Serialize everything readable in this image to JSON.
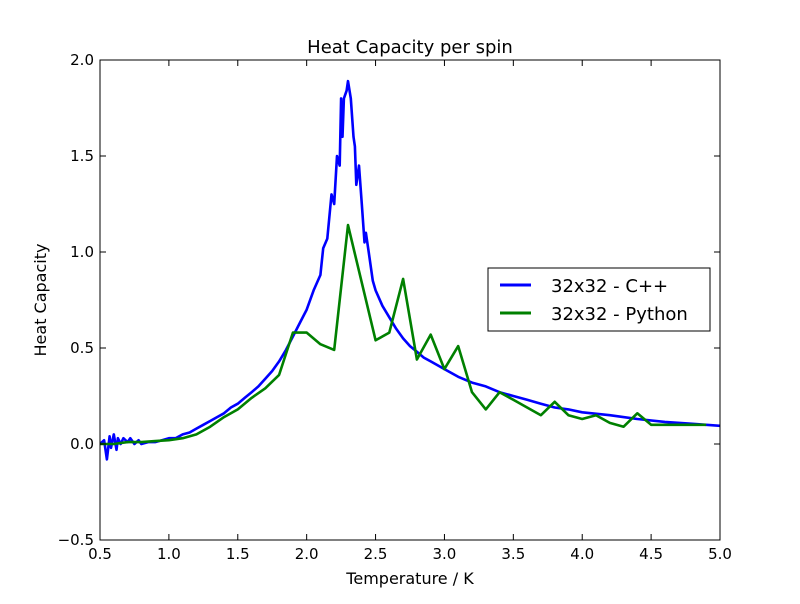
{
  "chart_data": {
    "type": "line",
    "title": "Heat Capacity per spin",
    "xlabel": "Temperature / K",
    "ylabel": "Heat Capacity",
    "xlim": [
      0.5,
      5.0
    ],
    "ylim": [
      -0.5,
      2.0
    ],
    "xticks": [
      "0.5",
      "1.0",
      "1.5",
      "2.0",
      "2.5",
      "3.0",
      "3.5",
      "4.0",
      "4.5",
      "5.0"
    ],
    "yticks": [
      "−0.5",
      "0.0",
      "0.5",
      "1.0",
      "1.5",
      "2.0"
    ],
    "xtick_values": [
      0.5,
      1.0,
      1.5,
      2.0,
      2.5,
      3.0,
      3.5,
      4.0,
      4.5,
      5.0
    ],
    "ytick_values": [
      -0.5,
      0.0,
      0.5,
      1.0,
      1.5,
      2.0
    ],
    "grid": false,
    "legend_position": "center-right",
    "series": [
      {
        "name": "32x32 - C++",
        "color": "#0000ff",
        "x": [
          0.5,
          0.53,
          0.55,
          0.57,
          0.58,
          0.6,
          0.62,
          0.63,
          0.65,
          0.67,
          0.7,
          0.72,
          0.75,
          0.78,
          0.8,
          0.85,
          0.9,
          0.95,
          1.0,
          1.05,
          1.1,
          1.15,
          1.2,
          1.25,
          1.3,
          1.35,
          1.4,
          1.45,
          1.5,
          1.55,
          1.6,
          1.65,
          1.7,
          1.75,
          1.8,
          1.85,
          1.9,
          1.95,
          2.0,
          2.05,
          2.1,
          2.12,
          2.15,
          2.18,
          2.2,
          2.22,
          2.24,
          2.25,
          2.26,
          2.27,
          2.29,
          2.3,
          2.32,
          2.34,
          2.35,
          2.36,
          2.38,
          2.4,
          2.42,
          2.43,
          2.45,
          2.48,
          2.5,
          2.55,
          2.6,
          2.65,
          2.7,
          2.75,
          2.8,
          2.85,
          2.9,
          2.95,
          3.0,
          3.1,
          3.2,
          3.3,
          3.4,
          3.5,
          3.6,
          3.7,
          3.8,
          3.9,
          4.0,
          4.2,
          4.4,
          4.6,
          4.8,
          5.0
        ],
        "y": [
          0.0,
          0.02,
          -0.08,
          0.04,
          -0.02,
          0.05,
          -0.03,
          0.03,
          0.0,
          0.03,
          0.01,
          0.03,
          0.0,
          0.02,
          0.0,
          0.01,
          0.01,
          0.02,
          0.03,
          0.03,
          0.05,
          0.06,
          0.08,
          0.1,
          0.12,
          0.14,
          0.16,
          0.19,
          0.21,
          0.24,
          0.27,
          0.3,
          0.34,
          0.38,
          0.43,
          0.49,
          0.56,
          0.63,
          0.7,
          0.8,
          0.88,
          1.02,
          1.07,
          1.3,
          1.25,
          1.5,
          1.45,
          1.8,
          1.6,
          1.8,
          1.84,
          1.89,
          1.8,
          1.6,
          1.55,
          1.35,
          1.45,
          1.25,
          1.05,
          1.1,
          1.0,
          0.85,
          0.8,
          0.72,
          0.66,
          0.6,
          0.55,
          0.51,
          0.48,
          0.45,
          0.43,
          0.41,
          0.39,
          0.35,
          0.32,
          0.3,
          0.27,
          0.25,
          0.23,
          0.21,
          0.19,
          0.18,
          0.165,
          0.15,
          0.13,
          0.115,
          0.105,
          0.095
        ]
      },
      {
        "name": "32x32 - Python",
        "color": "#008000",
        "x": [
          0.5,
          0.6,
          0.7,
          0.8,
          0.9,
          1.0,
          1.1,
          1.2,
          1.3,
          1.4,
          1.5,
          1.6,
          1.7,
          1.8,
          1.9,
          2.0,
          2.1,
          2.2,
          2.3,
          2.4,
          2.5,
          2.6,
          2.7,
          2.8,
          2.9,
          3.0,
          3.1,
          3.2,
          3.3,
          3.4,
          3.5,
          3.6,
          3.7,
          3.8,
          3.9,
          4.0,
          4.1,
          4.2,
          4.3,
          4.4,
          4.5,
          4.6,
          4.7,
          4.8,
          4.9
        ],
        "y": [
          0.0,
          0.0,
          0.01,
          0.01,
          0.015,
          0.02,
          0.03,
          0.05,
          0.09,
          0.14,
          0.18,
          0.24,
          0.29,
          0.36,
          0.58,
          0.58,
          0.52,
          0.49,
          1.14,
          0.84,
          0.54,
          0.58,
          0.86,
          0.44,
          0.57,
          0.39,
          0.51,
          0.27,
          0.18,
          0.27,
          0.23,
          0.19,
          0.15,
          0.22,
          0.15,
          0.13,
          0.15,
          0.11,
          0.09,
          0.16,
          0.1,
          0.1,
          0.1,
          0.1,
          0.1
        ]
      }
    ]
  }
}
